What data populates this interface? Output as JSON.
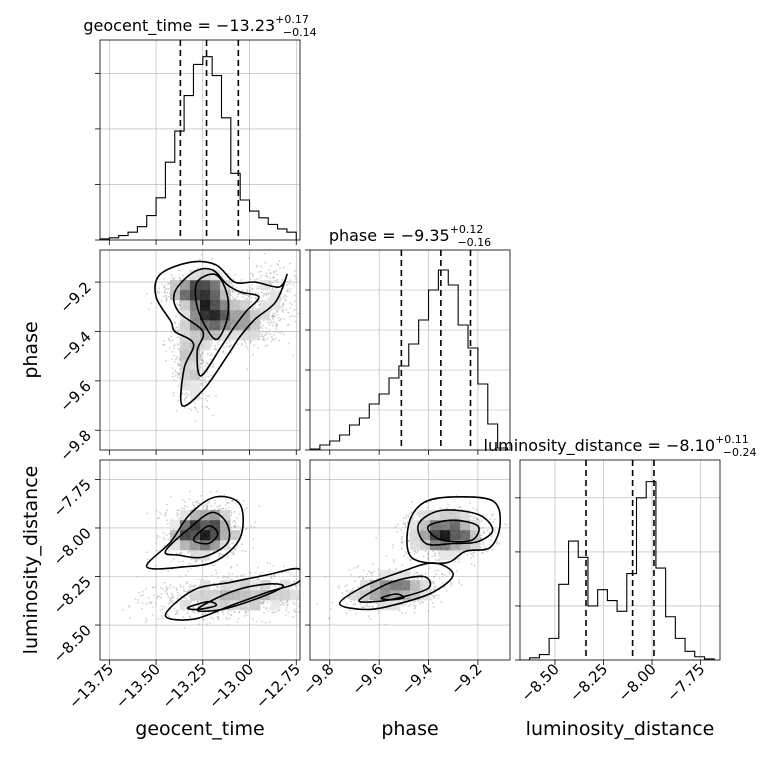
{
  "chart_data": {
    "type": "corner",
    "parameters": [
      "geocent_time",
      "phase",
      "luminosity_distance"
    ],
    "titles": {
      "geocent_time": {
        "prefix": "geocent_time = ",
        "median": "−13.23",
        "upper": "+0.17",
        "lower": "−0.14"
      },
      "phase": {
        "prefix": "phase = ",
        "median": "−9.35",
        "upper": "+0.12",
        "lower": "−0.16"
      },
      "luminosity_distance": {
        "prefix": "luminosity_distance = ",
        "median": "−8.10",
        "upper": "+0.11",
        "lower": "−0.24"
      }
    },
    "ranges": {
      "geocent_time": [
        -13.8,
        -12.73
      ],
      "phase": [
        -9.88,
        -9.07
      ],
      "luminosity_distance": [
        -8.68,
        -7.65
      ]
    },
    "ticks": {
      "geocent_time": [
        -13.75,
        -13.5,
        -13.25,
        -13.0,
        -12.75
      ],
      "phase": [
        -9.8,
        -9.6,
        -9.4,
        -9.2
      ],
      "luminosity_distance": [
        -8.5,
        -8.25,
        -8.0,
        -7.75
      ]
    },
    "tick_labels": {
      "geocent_time": [
        "−13.75",
        "−13.50",
        "−13.25",
        "−13.00",
        "−12.75"
      ],
      "phase": [
        "−9.8",
        "−9.6",
        "−9.4",
        "−9.2"
      ],
      "luminosity_distance": [
        "−8.50",
        "−8.25",
        "−8.00",
        "−7.75"
      ]
    },
    "quantiles": {
      "geocent_time": [
        -13.37,
        -13.23,
        -13.06
      ],
      "phase": [
        -9.51,
        -9.35,
        -9.23
      ],
      "luminosity_distance": [
        -8.34,
        -8.1,
        -7.99
      ]
    },
    "histograms": {
      "geocent_time": {
        "edges": [
          -13.8,
          -13.75,
          -13.7,
          -13.65,
          -13.6,
          -13.55,
          -13.5,
          -13.45,
          -13.4,
          -13.35,
          -13.3,
          -13.25,
          -13.2,
          -13.15,
          -13.1,
          -13.05,
          -13.0,
          -12.95,
          -12.9,
          -12.85,
          -12.8,
          -12.75
        ],
        "counts": [
          1,
          2,
          4,
          7,
          12,
          22,
          38,
          70,
          98,
          130,
          158,
          165,
          148,
          110,
          60,
          36,
          26,
          20,
          14,
          10,
          7
        ]
      },
      "phase": {
        "edges": [
          -9.88,
          -9.84,
          -9.8,
          -9.76,
          -9.72,
          -9.68,
          -9.64,
          -9.6,
          -9.56,
          -9.52,
          -9.48,
          -9.44,
          -9.4,
          -9.36,
          -9.32,
          -9.28,
          -9.24,
          -9.2,
          -9.16,
          -9.12,
          -9.08
        ],
        "counts": [
          1,
          5,
          9,
          15,
          25,
          32,
          46,
          56,
          72,
          84,
          106,
          130,
          160,
          180,
          165,
          125,
          102,
          66,
          26,
          2
        ]
      },
      "luminosity_distance": {
        "edges": [
          -8.68,
          -8.63,
          -8.58,
          -8.53,
          -8.48,
          -8.43,
          -8.38,
          -8.33,
          -8.28,
          -8.23,
          -8.18,
          -8.13,
          -8.08,
          -8.03,
          -7.98,
          -7.93,
          -7.88,
          -7.83,
          -7.78,
          -7.73,
          -7.68
        ],
        "counts": [
          0,
          2,
          5,
          20,
          70,
          110,
          95,
          50,
          65,
          55,
          45,
          80,
          150,
          165,
          85,
          40,
          20,
          8,
          3,
          1
        ]
      }
    },
    "hist_ylim": {
      "geocent_time": 180,
      "phase": 200,
      "luminosity_distance": 185
    },
    "hist_yticks": {
      "geocent_time": [
        0,
        50,
        100,
        150
      ],
      "phase": [
        0,
        40,
        80,
        120,
        160,
        200
      ],
      "luminosity_distance": [
        0,
        50,
        100,
        150
      ]
    },
    "density_2d": {
      "phase_vs_geocent_time": {
        "clusters": [
          {
            "cx": -13.22,
            "cy": -9.32,
            "sx": 0.07,
            "sy": 0.07,
            "rot": 0.0,
            "n": 320
          },
          {
            "cx": -13.3,
            "cy": -9.23,
            "sx": 0.09,
            "sy": 0.03,
            "rot": 0.3,
            "n": 160
          },
          {
            "cx": -13.05,
            "cy": -9.35,
            "sx": 0.12,
            "sy": 0.05,
            "rot": -0.7,
            "n": 180
          },
          {
            "cx": -13.32,
            "cy": -9.52,
            "sx": 0.05,
            "sy": 0.1,
            "rot": 0.2,
            "n": 150
          },
          {
            "cx": -12.88,
            "cy": -9.25,
            "sx": 0.07,
            "sy": 0.06,
            "rot": 0.0,
            "n": 80
          }
        ],
        "contours": [
          {
            "level": 3,
            "points": [
              [
                -13.42,
                -9.36
              ],
              [
                -13.5,
                -9.26
              ],
              [
                -13.48,
                -9.17
              ],
              [
                -13.32,
                -9.12
              ],
              [
                -13.18,
                -9.13
              ],
              [
                -13.08,
                -9.2
              ],
              [
                -12.97,
                -9.2
              ],
              [
                -12.84,
                -9.22
              ],
              [
                -12.8,
                -9.17
              ],
              [
                -12.86,
                -9.28
              ],
              [
                -12.97,
                -9.35
              ],
              [
                -13.05,
                -9.42
              ],
              [
                -13.12,
                -9.5
              ],
              [
                -13.24,
                -9.63
              ],
              [
                -13.36,
                -9.7
              ],
              [
                -13.35,
                -9.55
              ],
              [
                -13.3,
                -9.45
              ],
              [
                -13.4,
                -9.4
              ]
            ]
          },
          {
            "level": 2,
            "points": [
              [
                -13.38,
                -9.32
              ],
              [
                -13.4,
                -9.24
              ],
              [
                -13.3,
                -9.16
              ],
              [
                -13.2,
                -9.15
              ],
              [
                -13.12,
                -9.21
              ],
              [
                -13.05,
                -9.24
              ],
              [
                -12.95,
                -9.26
              ],
              [
                -13.02,
                -9.32
              ],
              [
                -13.08,
                -9.38
              ],
              [
                -13.15,
                -9.46
              ],
              [
                -13.26,
                -9.58
              ],
              [
                -13.28,
                -9.48
              ],
              [
                -13.25,
                -9.4
              ]
            ]
          },
          {
            "level": 1,
            "points": [
              [
                -13.28,
                -9.3
              ],
              [
                -13.28,
                -9.2
              ],
              [
                -13.18,
                -9.17
              ],
              [
                -13.12,
                -9.25
              ],
              [
                -13.12,
                -9.35
              ],
              [
                -13.17,
                -9.43
              ],
              [
                -13.22,
                -9.4
              ]
            ]
          }
        ]
      },
      "luminosity_distance_vs_geocent_time": {
        "clusters": [
          {
            "cx": -13.25,
            "cy": -8.02,
            "sx": 0.1,
            "sy": 0.07,
            "rot": 0.35,
            "n": 360
          },
          {
            "cx": -13.05,
            "cy": -8.35,
            "sx": 0.25,
            "sy": 0.06,
            "rot": 0.25,
            "n": 300
          }
        ],
        "contours": [
          {
            "level": 3,
            "points": [
              [
                -13.55,
                -8.2
              ],
              [
                -13.42,
                -8.07
              ],
              [
                -13.32,
                -7.93
              ],
              [
                -13.18,
                -7.84
              ],
              [
                -13.05,
                -7.88
              ],
              [
                -13.05,
                -8.05
              ],
              [
                -13.18,
                -8.17
              ],
              [
                -13.35,
                -8.2
              ]
            ]
          },
          {
            "level": 2,
            "points": [
              [
                -13.45,
                -8.12
              ],
              [
                -13.32,
                -8.0
              ],
              [
                -13.2,
                -7.92
              ],
              [
                -13.12,
                -7.98
              ],
              [
                -13.12,
                -8.08
              ],
              [
                -13.25,
                -8.15
              ],
              [
                -13.38,
                -8.14
              ]
            ]
          },
          {
            "level": 1,
            "points": [
              [
                -13.3,
                -8.06
              ],
              [
                -13.22,
                -7.99
              ],
              [
                -13.17,
                -8.03
              ],
              [
                -13.22,
                -8.08
              ]
            ]
          },
          {
            "level": 3,
            "points": [
              [
                -13.45,
                -8.45
              ],
              [
                -13.3,
                -8.32
              ],
              [
                -13.1,
                -8.28
              ],
              [
                -12.9,
                -8.24
              ],
              [
                -12.74,
                -8.21
              ],
              [
                -12.74,
                -8.28
              ],
              [
                -12.9,
                -8.33
              ],
              [
                -13.1,
                -8.4
              ],
              [
                -13.3,
                -8.47
              ]
            ]
          },
          {
            "level": 2,
            "points": [
              [
                -13.28,
                -8.42
              ],
              [
                -13.1,
                -8.33
              ],
              [
                -12.92,
                -8.29
              ],
              [
                -12.82,
                -8.3
              ],
              [
                -12.95,
                -8.36
              ],
              [
                -13.15,
                -8.42
              ]
            ]
          },
          {
            "level": 1,
            "points": [
              [
                -13.33,
                -8.41
              ],
              [
                -13.22,
                -8.38
              ],
              [
                -13.18,
                -8.4
              ],
              [
                -13.28,
                -8.42
              ]
            ]
          }
        ]
      },
      "luminosity_distance_vs_phase": {
        "clusters": [
          {
            "cx": -9.33,
            "cy": -8.03,
            "sx": 0.08,
            "sy": 0.06,
            "rot": 0.0,
            "n": 380
          },
          {
            "cx": -9.55,
            "cy": -8.32,
            "sx": 0.1,
            "sy": 0.05,
            "rot": 0.35,
            "n": 260
          }
        ],
        "contours": [
          {
            "level": 3,
            "points": [
              [
                -9.47,
                -8.15
              ],
              [
                -9.48,
                -7.98
              ],
              [
                -9.42,
                -7.87
              ],
              [
                -9.3,
                -7.84
              ],
              [
                -9.14,
                -7.86
              ],
              [
                -9.11,
                -7.98
              ],
              [
                -9.15,
                -8.1
              ],
              [
                -9.25,
                -8.12
              ],
              [
                -9.33,
                -8.18
              ]
            ]
          },
          {
            "level": 2,
            "points": [
              [
                -9.41,
                -8.08
              ],
              [
                -9.44,
                -7.98
              ],
              [
                -9.35,
                -7.91
              ],
              [
                -9.2,
                -7.93
              ],
              [
                -9.14,
                -8.01
              ],
              [
                -9.2,
                -8.07
              ],
              [
                -9.3,
                -8.08
              ]
            ]
          },
          {
            "level": 1,
            "points": [
              [
                -9.37,
                -8.05
              ],
              [
                -9.4,
                -7.99
              ],
              [
                -9.3,
                -7.96
              ],
              [
                -9.2,
                -7.99
              ],
              [
                -9.22,
                -8.06
              ],
              [
                -9.3,
                -8.07
              ]
            ]
          },
          {
            "level": 3,
            "points": [
              [
                -9.76,
                -8.39
              ],
              [
                -9.66,
                -8.3
              ],
              [
                -9.52,
                -8.23
              ],
              [
                -9.38,
                -8.18
              ],
              [
                -9.3,
                -8.24
              ],
              [
                -9.38,
                -8.33
              ],
              [
                -9.52,
                -8.39
              ],
              [
                -9.65,
                -8.42
              ]
            ]
          },
          {
            "level": 2,
            "points": [
              [
                -9.68,
                -8.37
              ],
              [
                -9.55,
                -8.28
              ],
              [
                -9.42,
                -8.25
              ],
              [
                -9.4,
                -8.31
              ],
              [
                -9.52,
                -8.36
              ],
              [
                -9.62,
                -8.38
              ]
            ]
          },
          {
            "level": 1,
            "points": [
              [
                -9.59,
                -8.36
              ],
              [
                -9.53,
                -8.34
              ],
              [
                -9.5,
                -8.36
              ],
              [
                -9.56,
                -8.37
              ]
            ]
          }
        ]
      }
    }
  }
}
